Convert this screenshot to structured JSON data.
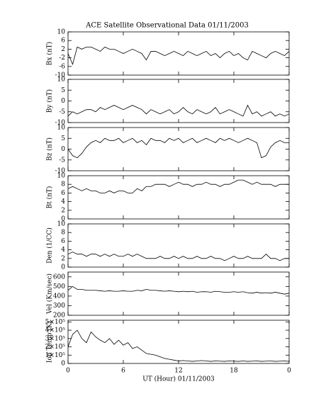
{
  "chart_data": [
    {
      "type": "line",
      "title": "ACE Satellite Observational Data   01/11/2003",
      "ylabel": "Bx (nT)",
      "color": "#000000",
      "x": [
        0,
        0.5,
        1,
        1.5,
        2,
        2.5,
        3,
        3.5,
        4,
        4.5,
        5,
        5.5,
        6,
        6.5,
        7,
        7.5,
        8,
        8.5,
        9,
        9.5,
        10,
        10.5,
        11,
        11.5,
        12,
        12.5,
        13,
        13.5,
        14,
        14.5,
        15,
        15.5,
        16,
        16.5,
        17,
        17.5,
        18,
        18.5,
        19,
        19.5,
        20,
        20.5,
        21,
        21.5,
        22,
        22.5,
        23,
        23.5,
        24
      ],
      "values": [
        0,
        -5,
        3,
        2,
        3,
        3,
        2,
        1,
        3,
        2,
        2,
        1,
        0,
        1,
        2,
        1,
        0,
        -3,
        1,
        1,
        0,
        -1,
        0,
        1,
        0,
        -1,
        1,
        0,
        -1,
        0,
        1,
        -1,
        0,
        -2,
        0,
        1,
        -1,
        0,
        -2,
        -3,
        1,
        0,
        -1,
        -2,
        0,
        1,
        0,
        -1,
        1
      ],
      "xlim": [
        0,
        24
      ],
      "ylim": [
        -10,
        10
      ],
      "yticks": [
        -10,
        -6,
        -2,
        2,
        6,
        10
      ]
    },
    {
      "type": "line",
      "ylabel": "By (nT)",
      "color": "#000000",
      "x": [
        0,
        0.5,
        1,
        1.5,
        2,
        2.5,
        3,
        3.5,
        4,
        4.5,
        5,
        5.5,
        6,
        6.5,
        7,
        7.5,
        8,
        8.5,
        9,
        9.5,
        10,
        10.5,
        11,
        11.5,
        12,
        12.5,
        13,
        13.5,
        14,
        14.5,
        15,
        15.5,
        16,
        16.5,
        17,
        17.5,
        18,
        18.5,
        19,
        19.5,
        20,
        20.5,
        21,
        21.5,
        22,
        22.5,
        23,
        23.5,
        24
      ],
      "values": [
        -7,
        -5,
        -6,
        -5,
        -4,
        -4,
        -5,
        -3,
        -4,
        -3,
        -2,
        -3,
        -4,
        -3,
        -2,
        -3,
        -4,
        -6,
        -4,
        -5,
        -6,
        -5,
        -4,
        -6,
        -5,
        -3,
        -5,
        -6,
        -4,
        -5,
        -6,
        -5,
        -3,
        -6,
        -5,
        -4,
        -5,
        -6,
        -7,
        -2,
        -6,
        -5,
        -7,
        -6,
        -5,
        -7,
        -6,
        -7,
        -6
      ],
      "xlim": [
        0,
        24
      ],
      "ylim": [
        -10,
        10
      ],
      "yticks": [
        -10,
        -5,
        0,
        5,
        10
      ]
    },
    {
      "type": "line",
      "ylabel": "Bz (nT)",
      "color": "#000000",
      "x": [
        0,
        0.5,
        1,
        1.5,
        2,
        2.5,
        3,
        3.5,
        4,
        4.5,
        5,
        5.5,
        6,
        6.5,
        7,
        7.5,
        8,
        8.5,
        9,
        9.5,
        10,
        10.5,
        11,
        11.5,
        12,
        12.5,
        13,
        13.5,
        14,
        14.5,
        15,
        15.5,
        16,
        16.5,
        17,
        17.5,
        18,
        18.5,
        19,
        19.5,
        20,
        20.5,
        21,
        21.5,
        22,
        22.5,
        23,
        23.5,
        24
      ],
      "values": [
        0,
        -3,
        -4,
        -2,
        1,
        3,
        4,
        3,
        5,
        4,
        4,
        5,
        3,
        4,
        5,
        3,
        4,
        2,
        5,
        4,
        4,
        3,
        5,
        4,
        5,
        3,
        4,
        5,
        3,
        4,
        5,
        4,
        3,
        5,
        4,
        5,
        4,
        3,
        4,
        5,
        4,
        3,
        -4,
        -3,
        1,
        3,
        4,
        3,
        3
      ],
      "xlim": [
        0,
        24
      ],
      "ylim": [
        -10,
        10
      ],
      "yticks": [
        -10,
        -5,
        0,
        5,
        10
      ]
    },
    {
      "type": "line",
      "ylabel": "Bt (nT)",
      "color": "#000000",
      "x": [
        0,
        0.5,
        1,
        1.5,
        2,
        2.5,
        3,
        3.5,
        4,
        4.5,
        5,
        5.5,
        6,
        6.5,
        7,
        7.5,
        8,
        8.5,
        9,
        9.5,
        10,
        10.5,
        11,
        11.5,
        12,
        12.5,
        13,
        13.5,
        14,
        14.5,
        15,
        15.5,
        16,
        16.5,
        17,
        17.5,
        18,
        18.5,
        19,
        19.5,
        20,
        20.5,
        21,
        21.5,
        22,
        22.5,
        23,
        23.5,
        24
      ],
      "values": [
        7,
        7.5,
        7,
        6.5,
        7,
        6.5,
        6.5,
        6,
        6,
        6.5,
        6,
        6.5,
        6.5,
        6,
        6,
        7,
        6.5,
        7.5,
        7.5,
        8,
        8,
        8,
        7.5,
        8,
        8.5,
        8,
        8,
        7.5,
        8,
        8,
        8.5,
        8,
        8,
        7.5,
        8,
        8,
        8.5,
        9,
        9,
        8.5,
        8,
        8.5,
        8,
        8,
        8,
        7.5,
        8,
        8,
        8
      ],
      "xlim": [
        0,
        24
      ],
      "ylim": [
        0,
        10
      ],
      "yticks": [
        0,
        2,
        4,
        6,
        8,
        10
      ]
    },
    {
      "type": "line",
      "ylabel": "Den (1/CC)",
      "color": "#000000",
      "x": [
        0,
        0.5,
        1,
        1.5,
        2,
        2.5,
        3,
        3.5,
        4,
        4.5,
        5,
        5.5,
        6,
        6.5,
        7,
        7.5,
        8,
        8.5,
        9,
        9.5,
        10,
        10.5,
        11,
        11.5,
        12,
        12.5,
        13,
        13.5,
        14,
        14.5,
        15,
        15.5,
        16,
        16.5,
        17,
        17.5,
        18,
        18.5,
        19,
        19.5,
        20,
        20.5,
        21,
        21.5,
        22,
        22.5,
        23,
        23.5,
        24
      ],
      "values": [
        3,
        3.5,
        3,
        3,
        2.5,
        3,
        3,
        2.5,
        3,
        2.5,
        3,
        2.5,
        2.5,
        3,
        2.5,
        3,
        2.5,
        2,
        2,
        2,
        2.5,
        2,
        2,
        2.5,
        2,
        2.5,
        2,
        2,
        2.5,
        2,
        2,
        2.5,
        2,
        2,
        1.5,
        2,
        2.5,
        2,
        2,
        2.5,
        2,
        2,
        2,
        3,
        2,
        2,
        1.5,
        2,
        2
      ],
      "xlim": [
        0,
        24
      ],
      "ylim": [
        0,
        10
      ],
      "yticks": [
        0,
        2,
        4,
        6,
        8,
        10
      ]
    },
    {
      "type": "line",
      "ylabel": "Vel (Km/sec)",
      "color": "#000000",
      "x": [
        0,
        0.5,
        1,
        1.5,
        2,
        2.5,
        3,
        3.5,
        4,
        4.5,
        5,
        5.5,
        6,
        6.5,
        7,
        7.5,
        8,
        8.5,
        9,
        9.5,
        10,
        10.5,
        11,
        11.5,
        12,
        12.5,
        13,
        13.5,
        14,
        14.5,
        15,
        15.5,
        16,
        16.5,
        17,
        17.5,
        18,
        18.5,
        19,
        19.5,
        20,
        20.5,
        21,
        21.5,
        22,
        22.5,
        23,
        23.5,
        24
      ],
      "values": [
        460,
        500,
        470,
        470,
        460,
        460,
        460,
        455,
        450,
        455,
        450,
        450,
        455,
        450,
        450,
        460,
        455,
        470,
        460,
        460,
        455,
        450,
        455,
        450,
        445,
        450,
        445,
        450,
        440,
        445,
        445,
        440,
        450,
        445,
        440,
        440,
        445,
        440,
        445,
        435,
        430,
        440,
        430,
        435,
        430,
        440,
        430,
        420,
        430
      ],
      "xlim": [
        0,
        24
      ],
      "ylim": [
        200,
        650
      ],
      "yticks": [
        200,
        300,
        400,
        500,
        600
      ]
    },
    {
      "type": "line",
      "ylabel": "Ion Temp (K)",
      "xlabel": "UT (Hour)  01/11/2003",
      "color": "#000000",
      "x": [
        0,
        0.5,
        1,
        1.5,
        2,
        2.5,
        3,
        3.5,
        4,
        4.5,
        5,
        5.5,
        6,
        6.5,
        7,
        7.5,
        8,
        8.5,
        9,
        9.5,
        10,
        10.5,
        11,
        11.5,
        12,
        12.5,
        13,
        13.5,
        14,
        14.5,
        15,
        15.5,
        16,
        16.5,
        17,
        17.5,
        18,
        18.5,
        19,
        19.5,
        20,
        20.5,
        21,
        21.5,
        22,
        22.5,
        23,
        23.5,
        24
      ],
      "values": [
        200000,
        350000,
        400000,
        300000,
        250000,
        380000,
        320000,
        280000,
        250000,
        300000,
        230000,
        280000,
        220000,
        250000,
        180000,
        200000,
        160000,
        120000,
        110000,
        100000,
        80000,
        60000,
        50000,
        40000,
        30000,
        35000,
        30000,
        25000,
        30000,
        35000,
        30000,
        25000,
        30000,
        28000,
        25000,
        30000,
        28000,
        25000,
        30000,
        25000,
        28000,
        30000,
        25000,
        28000,
        30000,
        25000,
        28000,
        30000,
        25000
      ],
      "xlim": [
        0,
        24
      ],
      "ylim": [
        0,
        520000
      ],
      "yticks": [
        0,
        {
          "value": 100000,
          "label": "1×10⁵"
        },
        {
          "value": 200000,
          "label": "2×10⁵"
        },
        {
          "value": 300000,
          "label": "3×10⁵"
        },
        {
          "value": 400000,
          "label": "4×10⁵"
        },
        {
          "value": 500000,
          "label": "5×10⁵"
        }
      ],
      "xticks": [
        0,
        6,
        12,
        18,
        {
          "value": 24,
          "label": "0"
        }
      ]
    }
  ]
}
